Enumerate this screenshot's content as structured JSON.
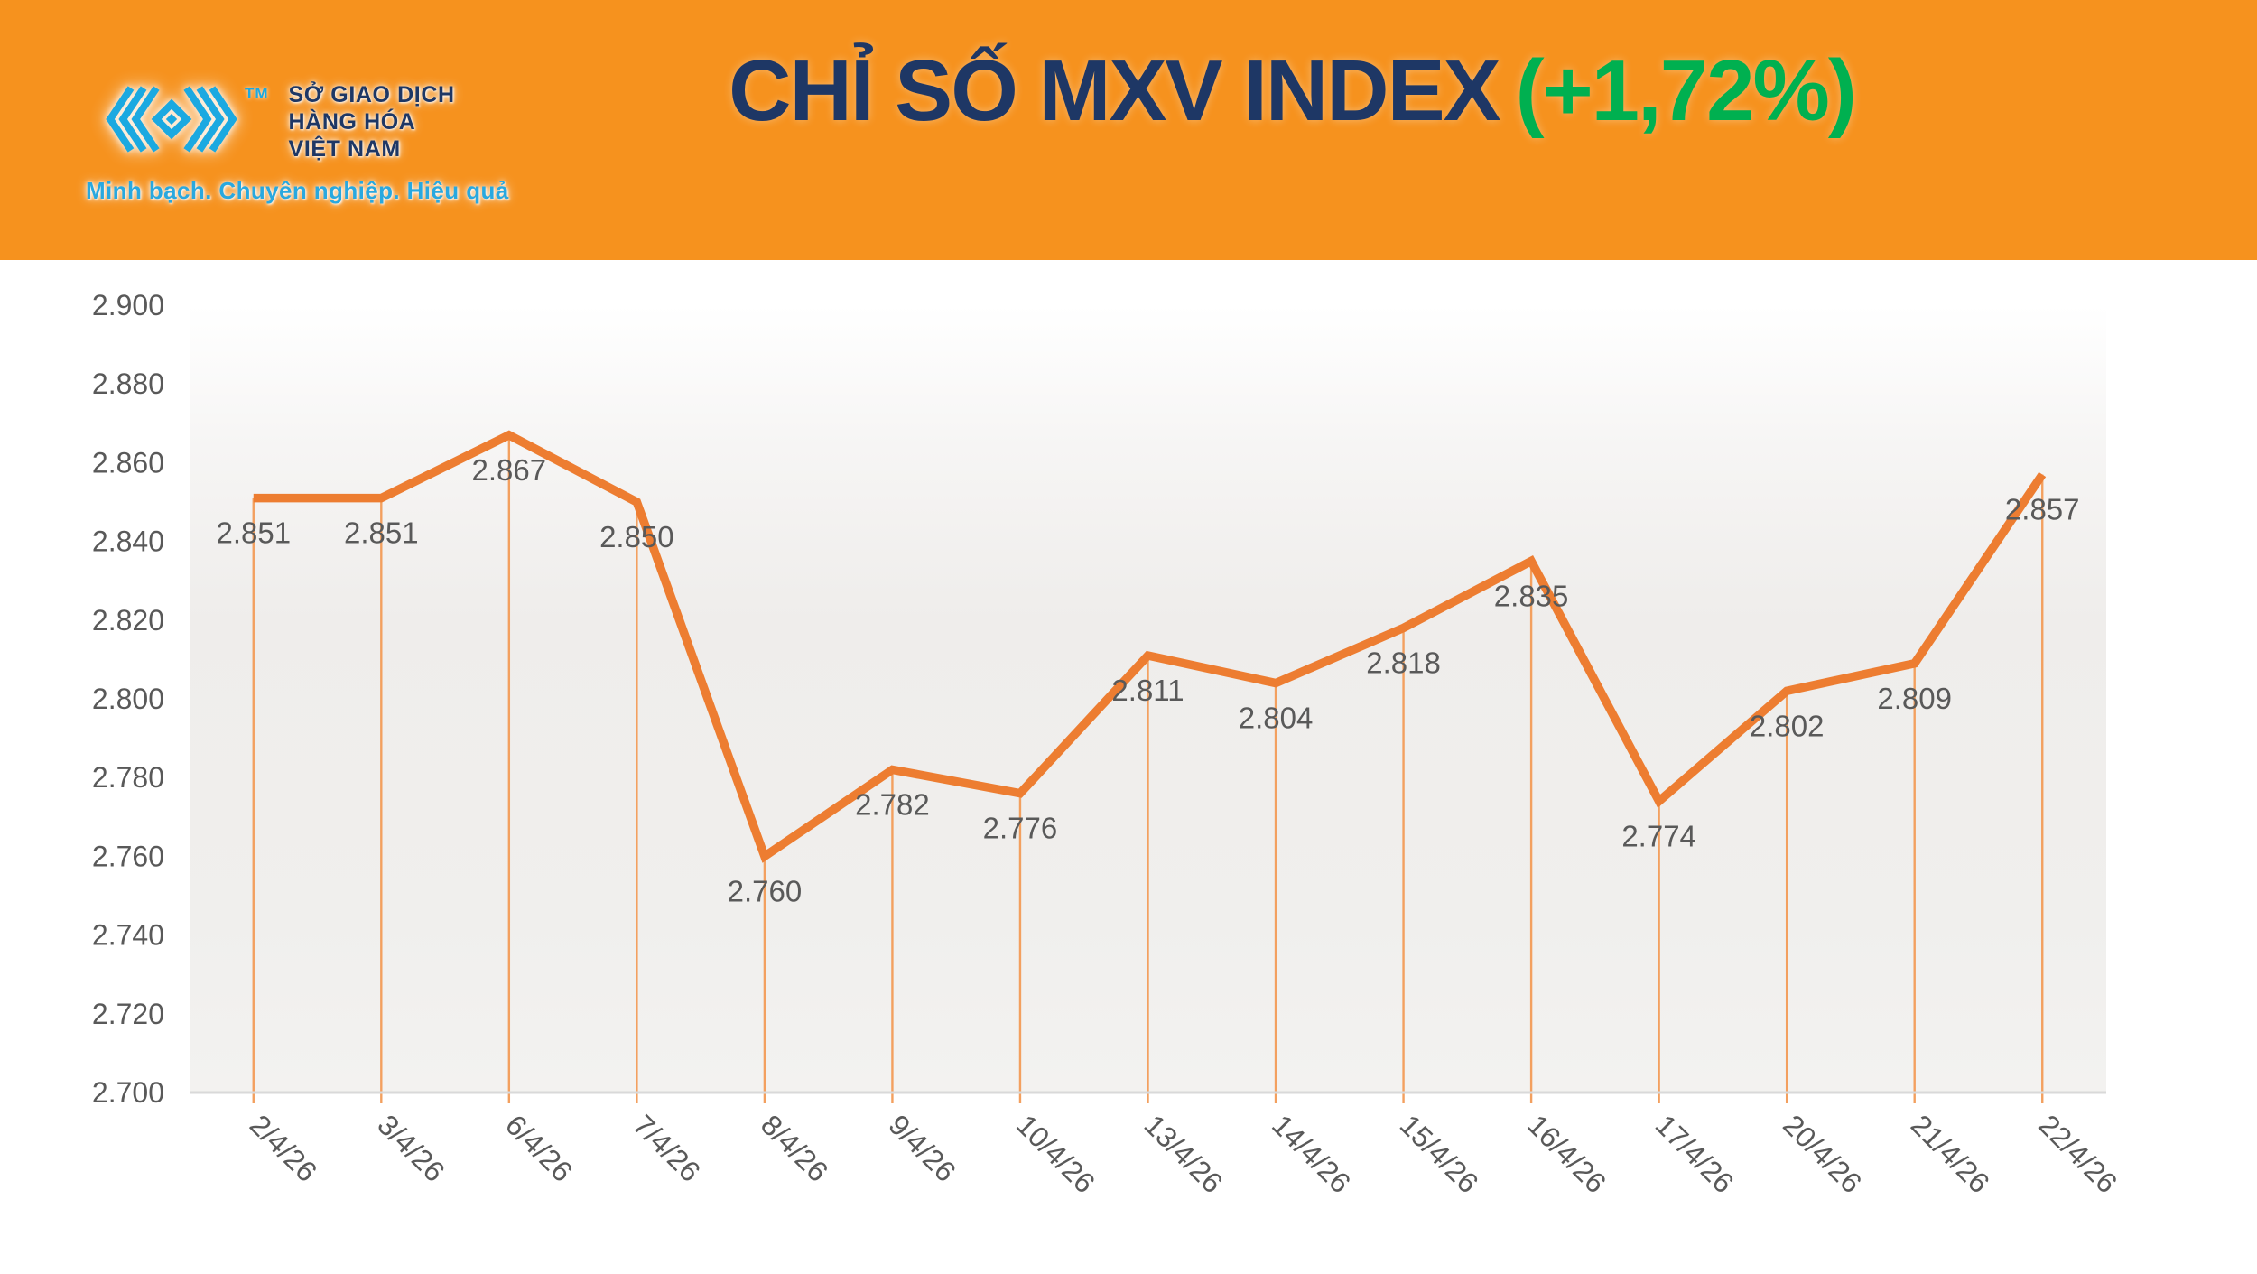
{
  "header": {
    "logo": {
      "org_lines": [
        "SỞ GIAO DỊCH",
        "HÀNG HÓA",
        "VIỆT NAM"
      ],
      "tm": "TM",
      "tagline": "Minh bạch. Chuyên nghiệp. Hiệu quả"
    },
    "title": {
      "main": "CHỈ SỐ MXV INDEX",
      "change": "(+1,72%)"
    }
  },
  "chart_data": {
    "type": "line",
    "title": "CHỈ SỐ MXV INDEX (+1,72%)",
    "categories": [
      "2/4/26",
      "3/4/26",
      "6/4/26",
      "7/4/26",
      "8/4/26",
      "9/4/26",
      "10/4/26",
      "13/4/26",
      "14/4/26",
      "15/4/26",
      "16/4/26",
      "17/4/26",
      "20/4/26",
      "21/4/26",
      "22/4/26"
    ],
    "values": [
      2851,
      2851,
      2867,
      2850,
      2760,
      2782,
      2776,
      2811,
      2804,
      2818,
      2835,
      2774,
      2802,
      2809,
      2857
    ],
    "point_labels": [
      "2.851",
      "2.851",
      "2.867",
      "2.850",
      "2.760",
      "2.782",
      "2.776",
      "2.811",
      "2.804",
      "2.818",
      "2.835",
      "2.774",
      "2.802",
      "2.809",
      "2.857"
    ],
    "y_ticks": [
      "2.900",
      "2.880",
      "2.860",
      "2.840",
      "2.820",
      "2.800",
      "2.780",
      "2.760",
      "2.740",
      "2.720",
      "2.700"
    ],
    "ylim": [
      2700,
      2900
    ],
    "xlabel": "",
    "ylabel": "",
    "grid": false,
    "legend": false,
    "x_tick_rotation_deg": 45,
    "colors": {
      "line": "#ED7D31",
      "drop_line": "#F3A05F",
      "axis_line": "#D9D9D9",
      "tick_label": "#595959",
      "data_label": "#595959"
    }
  },
  "theme": {
    "banner_orange": "#F6921E",
    "title_navy": "#1E3765",
    "change_green": "#00B050",
    "logo_cyan": "#1BA9E1",
    "tagline_cyan": "#29A8DF"
  }
}
